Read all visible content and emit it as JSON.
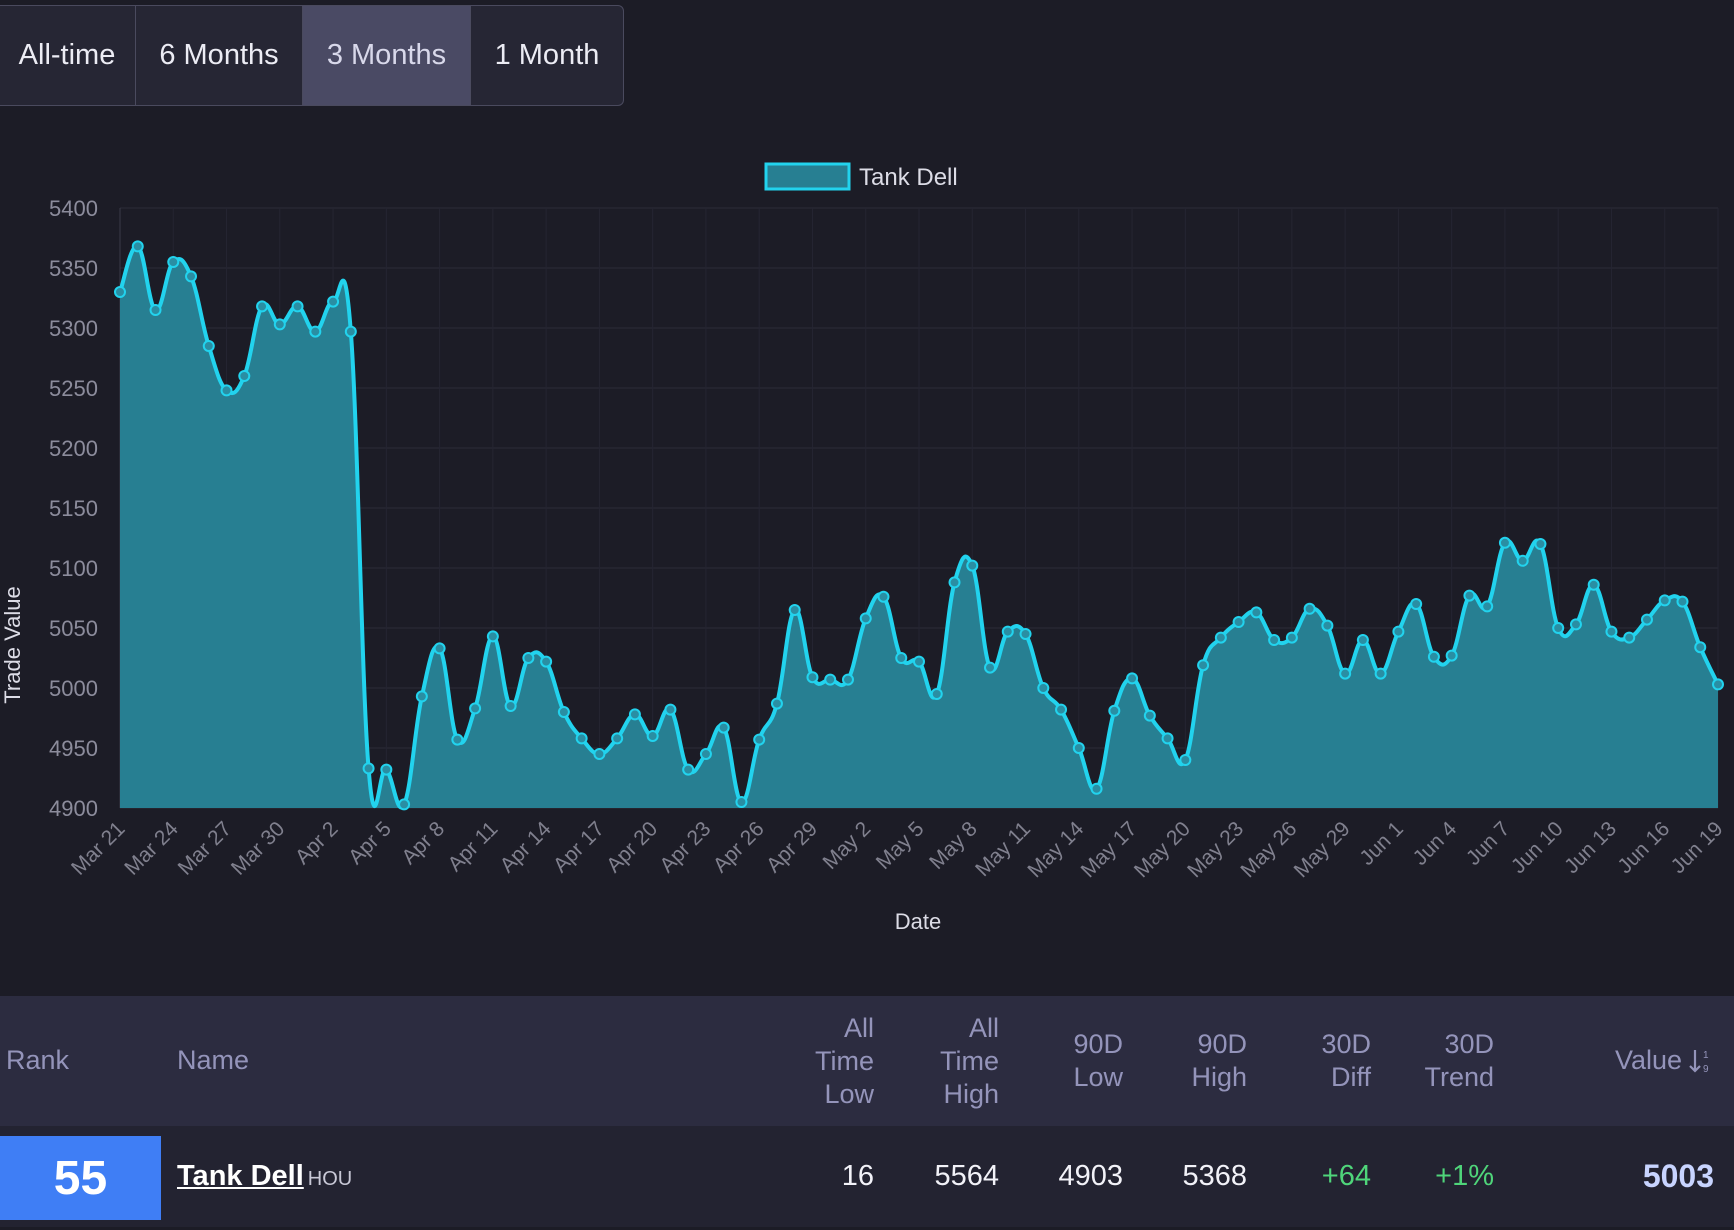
{
  "tabs": [
    {
      "label": "All-time"
    },
    {
      "label": "6 Months"
    },
    {
      "label": "3 Months"
    },
    {
      "label": "1 Month"
    }
  ],
  "active_tab": "3 Months",
  "chart_data": {
    "type": "area",
    "xlabel": "Date",
    "ylabel": "Trade Value",
    "ylim": [
      4900,
      5400
    ],
    "y_ticks": [
      4900,
      4950,
      5000,
      5050,
      5100,
      5150,
      5200,
      5250,
      5300,
      5350,
      5400
    ],
    "x_tick_labels": [
      "Mar 21",
      "Mar 24",
      "Mar 27",
      "Mar 30",
      "Apr 2",
      "Apr 5",
      "Apr 8",
      "Apr 11",
      "Apr 14",
      "Apr 17",
      "Apr 20",
      "Apr 23",
      "Apr 26",
      "Apr 29",
      "May 2",
      "May 5",
      "May 8",
      "May 11",
      "May 14",
      "May 17",
      "May 20",
      "May 23",
      "May 26",
      "May 29",
      "Jun 1",
      "Jun 4",
      "Jun 7",
      "Jun 10",
      "Jun 13",
      "Jun 16",
      "Jun 19"
    ],
    "grid": true,
    "legend_position": "top-center",
    "series_color": "#22d3ee",
    "fill_color": "#277f92",
    "series": [
      {
        "name": "Tank Dell",
        "values": [
          5330,
          5368,
          5315,
          5355,
          5343,
          5285,
          5248,
          5260,
          5318,
          5303,
          5318,
          5297,
          5322,
          5297,
          4933,
          4932,
          4903,
          4993,
          5033,
          4957,
          4983,
          5043,
          4985,
          5025,
          5022,
          4980,
          4958,
          4945,
          4958,
          4978,
          4960,
          4982,
          4932,
          4945,
          4967,
          4905,
          4957,
          4987,
          5065,
          5009,
          5007,
          5007,
          5058,
          5076,
          5025,
          5022,
          4995,
          5088,
          5102,
          5017,
          5047,
          5045,
          5000,
          4982,
          4950,
          4916,
          4981,
          5008,
          4977,
          4958,
          4940,
          5019,
          5042,
          5055,
          5063,
          5040,
          5042,
          5066,
          5052,
          5012,
          5040,
          5012,
          5047,
          5070,
          5026,
          5027,
          5077,
          5068,
          5121,
          5106,
          5120,
          5050,
          5053,
          5086,
          5047,
          5042,
          5057,
          5073,
          5072,
          5034,
          5003
        ]
      }
    ]
  },
  "table": {
    "headers": {
      "rank": "Rank",
      "name": "Name",
      "atl": [
        "All",
        "Time",
        "Low"
      ],
      "ath": [
        "All",
        "Time",
        "High"
      ],
      "low90": [
        "90D",
        "Low"
      ],
      "high90": [
        "90D",
        "High"
      ],
      "diff30": [
        "30D",
        "Diff"
      ],
      "trend30": [
        "30D",
        "Trend"
      ],
      "value": "Value",
      "sort_icon": "sort-descending-icon"
    },
    "rows": [
      {
        "rank": "55",
        "name": "Tank Dell",
        "team": "HOU",
        "atl": "16",
        "ath": "5564",
        "low90": "4903",
        "high90": "5368",
        "diff30": "+64",
        "trend30": "+1%",
        "value": "5003"
      }
    ]
  }
}
